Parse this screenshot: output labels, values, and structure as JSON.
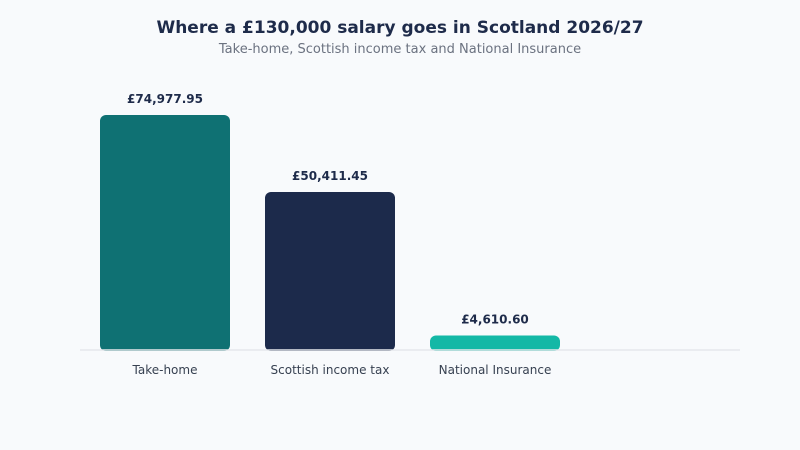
{
  "chart_data": {
    "type": "bar",
    "title": "Where a £130,000 salary goes in Scotland 2026/27",
    "subtitle": "Take-home, Scottish income tax and National Insurance",
    "categories": [
      "Take-home",
      "Scottish income tax",
      "National Insurance"
    ],
    "values": [
      74977.95,
      50411.45,
      4610.6
    ],
    "value_labels": [
      "£74,977.95",
      "£50,411.45",
      "£4,610.60"
    ],
    "colors": [
      "#0f7173",
      "#1c2a4b",
      "#14b8a6"
    ],
    "xlabel": "",
    "ylabel": "",
    "ylim": [
      0,
      74977.95
    ],
    "grid": false,
    "legend": "none"
  }
}
